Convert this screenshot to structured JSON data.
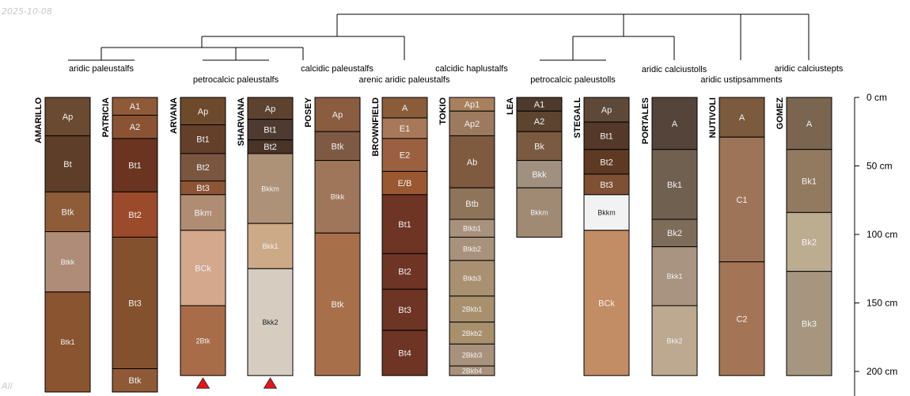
{
  "stamps": {
    "date": "2025-10-08",
    "corner": "All"
  },
  "depth_axis": {
    "ticks": [
      {
        "depth": 0,
        "label": "0 cm"
      },
      {
        "depth": 50,
        "label": "50 cm"
      },
      {
        "depth": 100,
        "label": "100 cm"
      },
      {
        "depth": 150,
        "label": "150 cm"
      },
      {
        "depth": 200,
        "label": "200 cm"
      }
    ]
  },
  "profiles": [
    {
      "name": "AMARILLO",
      "truncated": false,
      "horizons": [
        {
          "name": "Ap",
          "top": 0,
          "bottom": 28,
          "color": "#6a4a30"
        },
        {
          "name": "Bt",
          "top": 28,
          "bottom": 69,
          "color": "#5e3e28"
        },
        {
          "name": "Btk",
          "top": 69,
          "bottom": 98,
          "color": "#8e5c38"
        },
        {
          "name": "Btkk",
          "top": 98,
          "bottom": 142,
          "color": "#ae8c78"
        },
        {
          "name": "Btk1",
          "top": 142,
          "bottom": 215,
          "color": "#8a5430"
        }
      ]
    },
    {
      "name": "PATRICIA",
      "truncated": false,
      "horizons": [
        {
          "name": "A1",
          "top": 0,
          "bottom": 13,
          "color": "#8e5a38"
        },
        {
          "name": "A2",
          "top": 13,
          "bottom": 30,
          "color": "#8a5434"
        },
        {
          "name": "Bt1",
          "top": 30,
          "bottom": 69,
          "color": "#6a3420"
        },
        {
          "name": "Bt2",
          "top": 69,
          "bottom": 102,
          "color": "#9c4a2c"
        },
        {
          "name": "Bt3",
          "top": 102,
          "bottom": 198,
          "color": "#84512e"
        },
        {
          "name": "Btk",
          "top": 198,
          "bottom": 215,
          "color": "#8e5a36"
        }
      ]
    },
    {
      "name": "ARVANA",
      "truncated": true,
      "horizons": [
        {
          "name": "Ap",
          "top": 0,
          "bottom": 20,
          "color": "#6e4a2c"
        },
        {
          "name": "Bt1",
          "top": 20,
          "bottom": 41,
          "color": "#64402a"
        },
        {
          "name": "Bt2",
          "top": 41,
          "bottom": 61,
          "color": "#7a5640"
        },
        {
          "name": "Bt3",
          "top": 61,
          "bottom": 71,
          "color": "#8c5634"
        },
        {
          "name": "Bkm",
          "top": 71,
          "bottom": 97,
          "color": "#b08c72"
        },
        {
          "name": "BCk",
          "top": 97,
          "bottom": 152,
          "color": "#d3a88c"
        },
        {
          "name": "2Btk",
          "top": 152,
          "bottom": 203,
          "color": "#a86c48"
        }
      ]
    },
    {
      "name": "SHARVANA",
      "truncated": true,
      "horizons": [
        {
          "name": "Ap",
          "top": 0,
          "bottom": 16,
          "color": "#5e4230"
        },
        {
          "name": "Bt1",
          "top": 16,
          "bottom": 31,
          "color": "#4e3a30"
        },
        {
          "name": "Bt2",
          "top": 31,
          "bottom": 41,
          "color": "#4a3428"
        },
        {
          "name": "Bkkm",
          "top": 41,
          "bottom": 92,
          "color": "#ae9278"
        },
        {
          "name": "Bkk1",
          "top": 92,
          "bottom": 125,
          "color": "#ccaa88"
        },
        {
          "name": "Bkk2",
          "top": 125,
          "bottom": 203,
          "color": "#d6ccc0"
        }
      ]
    },
    {
      "name": "POSEY",
      "truncated": false,
      "horizons": [
        {
          "name": "Ap",
          "top": 0,
          "bottom": 25,
          "color": "#8a5c40"
        },
        {
          "name": "Btk",
          "top": 25,
          "bottom": 46,
          "color": "#7e5a44"
        },
        {
          "name": "Btkk",
          "top": 46,
          "bottom": 99,
          "color": "#a0765a"
        },
        {
          "name": "Btk",
          "top": 99,
          "bottom": 203,
          "color": "#a8704a"
        }
      ]
    },
    {
      "name": "BROWNFIELD",
      "truncated": false,
      "horizons": [
        {
          "name": "A",
          "top": 0,
          "bottom": 15,
          "color": "#8a5c3a"
        },
        {
          "name": "E1",
          "top": 15,
          "bottom": 30,
          "color": "#a8785a"
        },
        {
          "name": "E2",
          "top": 30,
          "bottom": 54,
          "color": "#9a6040"
        },
        {
          "name": "E/B",
          "top": 54,
          "bottom": 71,
          "color": "#9a5830"
        },
        {
          "name": "Bt1",
          "top": 71,
          "bottom": 114,
          "color": "#6e3424"
        },
        {
          "name": "Bt2",
          "top": 114,
          "bottom": 140,
          "color": "#6e3424"
        },
        {
          "name": "Bt3",
          "top": 140,
          "bottom": 170,
          "color": "#6e3424"
        },
        {
          "name": "Bt4",
          "top": 170,
          "bottom": 203,
          "color": "#6e3424"
        }
      ]
    },
    {
      "name": "TOKIO",
      "truncated": false,
      "horizons": [
        {
          "name": "Ap1",
          "top": 0,
          "bottom": 10,
          "color": "#a8805c"
        },
        {
          "name": "Ap2",
          "top": 10,
          "bottom": 28,
          "color": "#9c7a5e"
        },
        {
          "name": "Ab",
          "top": 28,
          "bottom": 66,
          "color": "#7e5a3e"
        },
        {
          "name": "Btb",
          "top": 66,
          "bottom": 89,
          "color": "#8e7458"
        },
        {
          "name": "Btkb1",
          "top": 89,
          "bottom": 102,
          "color": "#a8927c"
        },
        {
          "name": "Btkb2",
          "top": 102,
          "bottom": 119,
          "color": "#a8927c"
        },
        {
          "name": "Btkb3",
          "top": 119,
          "bottom": 145,
          "color": "#a89070"
        },
        {
          "name": "2Bkb1",
          "top": 145,
          "bottom": 164,
          "color": "#a8906c"
        },
        {
          "name": "2Bkb2",
          "top": 164,
          "bottom": 180,
          "color": "#a8906c"
        },
        {
          "name": "2Bkb3",
          "top": 180,
          "bottom": 196,
          "color": "#a8927c"
        },
        {
          "name": "2Bkb4",
          "top": 196,
          "bottom": 203,
          "color": "#a8927c"
        }
      ]
    },
    {
      "name": "LEA",
      "truncated": false,
      "horizons": [
        {
          "name": "A1",
          "top": 0,
          "bottom": 10,
          "color": "#4e3a2c"
        },
        {
          "name": "A2",
          "top": 10,
          "bottom": 25,
          "color": "#5c4430"
        },
        {
          "name": "Bk",
          "top": 25,
          "bottom": 46,
          "color": "#7a5a40"
        },
        {
          "name": "Bkk",
          "top": 46,
          "bottom": 66,
          "color": "#a09080"
        },
        {
          "name": "Bkkm",
          "top": 66,
          "bottom": 102,
          "color": "#a08a74"
        }
      ]
    },
    {
      "name": "STEGALL",
      "truncated": false,
      "horizons": [
        {
          "name": "Ap",
          "top": 0,
          "bottom": 18,
          "color": "#5e4838"
        },
        {
          "name": "Bt1",
          "top": 18,
          "bottom": 38,
          "color": "#54382a"
        },
        {
          "name": "Bt2",
          "top": 38,
          "bottom": 56,
          "color": "#5e3a24"
        },
        {
          "name": "Bt3",
          "top": 56,
          "bottom": 71,
          "color": "#7e5034"
        },
        {
          "name": "Bkkm",
          "top": 71,
          "bottom": 97,
          "color": "#f2f2f2"
        },
        {
          "name": "BCk",
          "top": 97,
          "bottom": 203,
          "color": "#c28c64"
        }
      ]
    },
    {
      "name": "PORTALES",
      "truncated": false,
      "horizons": [
        {
          "name": "A",
          "top": 0,
          "bottom": 38,
          "color": "#54443a"
        },
        {
          "name": "Bk1",
          "top": 38,
          "bottom": 89,
          "color": "#706050"
        },
        {
          "name": "Bk2",
          "top": 89,
          "bottom": 109,
          "color": "#7e6c5a"
        },
        {
          "name": "Bkk1",
          "top": 109,
          "bottom": 152,
          "color": "#a89480"
        },
        {
          "name": "Bkk2",
          "top": 152,
          "bottom": 203,
          "color": "#bca990"
        }
      ]
    },
    {
      "name": "NUTIVOLI",
      "truncated": false,
      "horizons": [
        {
          "name": "A",
          "top": 0,
          "bottom": 29,
          "color": "#7c5a3e"
        },
        {
          "name": "C1",
          "top": 29,
          "bottom": 120,
          "color": "#9e7458"
        },
        {
          "name": "C2",
          "top": 120,
          "bottom": 203,
          "color": "#a47456"
        }
      ]
    },
    {
      "name": "GOMEZ",
      "truncated": false,
      "horizons": [
        {
          "name": "A",
          "top": 0,
          "bottom": 38,
          "color": "#7a6650"
        },
        {
          "name": "Bk1",
          "top": 38,
          "bottom": 84,
          "color": "#927a60"
        },
        {
          "name": "Bk2",
          "top": 84,
          "bottom": 127,
          "color": "#bcac90"
        },
        {
          "name": "Bk3",
          "top": 127,
          "bottom": 203,
          "color": "#a69680"
        }
      ]
    }
  ],
  "classifications": [
    "aridic paleustalfs",
    "petrocalcic paleustalfs",
    "calcidic paleustalfs",
    "arenic aridic paleustalfs",
    "calcidic haplustalfs",
    "petrocalcic paleustolls",
    "aridic calciustolls",
    "aridic ustipsamments",
    "aridic calciustepts"
  ]
}
